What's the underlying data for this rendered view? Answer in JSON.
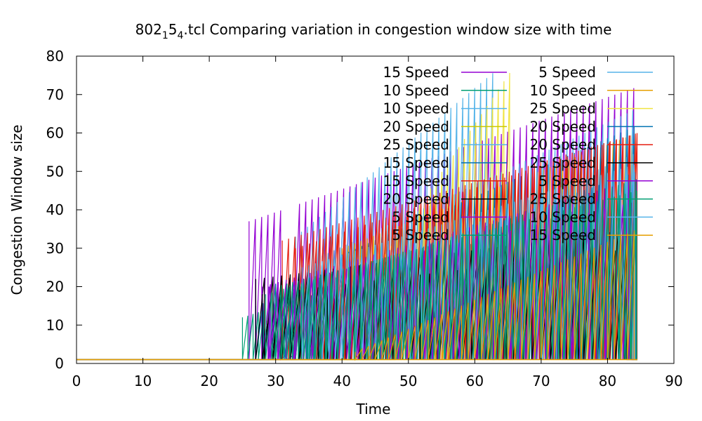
{
  "chart_data": {
    "type": "line",
    "title_base": "802",
    "title_sub1": "1",
    "title_mid": "5",
    "title_sub2": "4",
    "title_rest": ".tcl Comparing variation in congestion window size with time",
    "xlabel": "Time",
    "ylabel": "Congestion Window size",
    "xlim": [
      0,
      90
    ],
    "ylim": [
      0,
      80
    ],
    "xticks": [
      0,
      10,
      20,
      30,
      40,
      50,
      60,
      70,
      80,
      90
    ],
    "yticks": [
      0,
      10,
      20,
      30,
      40,
      50,
      60,
      70,
      80
    ],
    "grid": false,
    "legend_position": "top-right",
    "series": [
      {
        "name": "15 Speed",
        "color": "#9400d3",
        "start": 26.0,
        "end": 84.5,
        "period": 0.95,
        "peak_start": 37,
        "peak_end": 72,
        "resets": [
          [
            31.5,
            33.3
          ]
        ]
      },
      {
        "name": "5 Speed",
        "color": "#56b4e9",
        "start": 33.0,
        "end": 63.0,
        "period": 0.9,
        "peak_start": 33,
        "peak_end": 76,
        "resets": []
      },
      {
        "name": "10 Speed",
        "color": "#009e73",
        "start": 25.0,
        "end": 84.5,
        "period": 0.8,
        "peak_start": 12,
        "peak_end": 45,
        "resets": []
      },
      {
        "name": "10 Speed",
        "color": "#e69f00",
        "start": 40.0,
        "end": 84.5,
        "period": 0.95,
        "peak_start": 30,
        "peak_end": 60,
        "resets": []
      },
      {
        "name": "10 Speed",
        "color": "#56b4e9",
        "start": 37.0,
        "end": 84.0,
        "period": 0.9,
        "peak_start": 28,
        "peak_end": 66,
        "resets": []
      },
      {
        "name": "25 Speed",
        "color": "#f0e442",
        "start": 44.0,
        "end": 65.8,
        "period": 0.85,
        "peak_start": 22,
        "peak_end": 77,
        "resets": []
      },
      {
        "name": "20 Speed",
        "color": "#c8c800",
        "start": 48.0,
        "end": 84.5,
        "period": 1.0,
        "peak_start": 20,
        "peak_end": 50,
        "resets": []
      },
      {
        "name": "20 Speed",
        "color": "#0072b2",
        "start": 29.0,
        "end": 84.5,
        "period": 1.0,
        "peak_start": 20,
        "peak_end": 62,
        "resets": []
      },
      {
        "name": "25 Speed",
        "color": "#56b4e9",
        "start": 45.0,
        "end": 84.5,
        "period": 1.05,
        "peak_start": 25,
        "peak_end": 55,
        "resets": []
      },
      {
        "name": "20 Speed",
        "color": "#e51e10",
        "start": 31.0,
        "end": 84.5,
        "period": 0.95,
        "peak_start": 32,
        "peak_end": 60,
        "resets": []
      },
      {
        "name": "15 Speed",
        "color": "#0072b2",
        "start": 27.0,
        "end": 84.5,
        "period": 1.1,
        "peak_start": 15,
        "peak_end": 50,
        "resets": []
      },
      {
        "name": "25 Speed",
        "color": "#000000",
        "start": 27.0,
        "end": 84.0,
        "period": 1.3,
        "peak_start": 22,
        "peak_end": 35,
        "resets": []
      },
      {
        "name": "15 Speed",
        "color": "#e51e10",
        "start": 33.0,
        "end": 84.5,
        "period": 1.05,
        "peak_start": 30,
        "peak_end": 60,
        "resets": []
      },
      {
        "name": "5 Speed",
        "color": "#9400d3",
        "start": 28.0,
        "end": 84.5,
        "period": 1.2,
        "peak_start": 20,
        "peak_end": 48,
        "resets": []
      },
      {
        "name": "20 Speed",
        "color": "#000000",
        "start": 28.0,
        "end": 84.0,
        "period": 1.4,
        "peak_start": 18,
        "peak_end": 30,
        "resets": []
      },
      {
        "name": "25 Speed",
        "color": "#009e73",
        "start": 28.5,
        "end": 84.5,
        "period": 0.9,
        "peak_start": 18,
        "peak_end": 48,
        "resets": []
      },
      {
        "name": "5 Speed",
        "color": "#9400d3",
        "start": 29.0,
        "end": 84.0,
        "period": 1.3,
        "peak_start": 20,
        "peak_end": 42,
        "resets": []
      },
      {
        "name": "10 Speed",
        "color": "#56b4e9",
        "start": 34.0,
        "end": 84.5,
        "period": 1.0,
        "peak_start": 25,
        "peak_end": 52,
        "resets": []
      },
      {
        "name": "5 Speed",
        "color": "#009e73",
        "start": 30.0,
        "end": 84.5,
        "period": 0.85,
        "peak_start": 20,
        "peak_end": 45,
        "resets": []
      },
      {
        "name": "15 Speed",
        "color": "#e69f00",
        "start": 42.0,
        "end": 84.5,
        "period": 1.0,
        "peak_start": 3,
        "peak_end": 35,
        "resets": []
      }
    ]
  }
}
